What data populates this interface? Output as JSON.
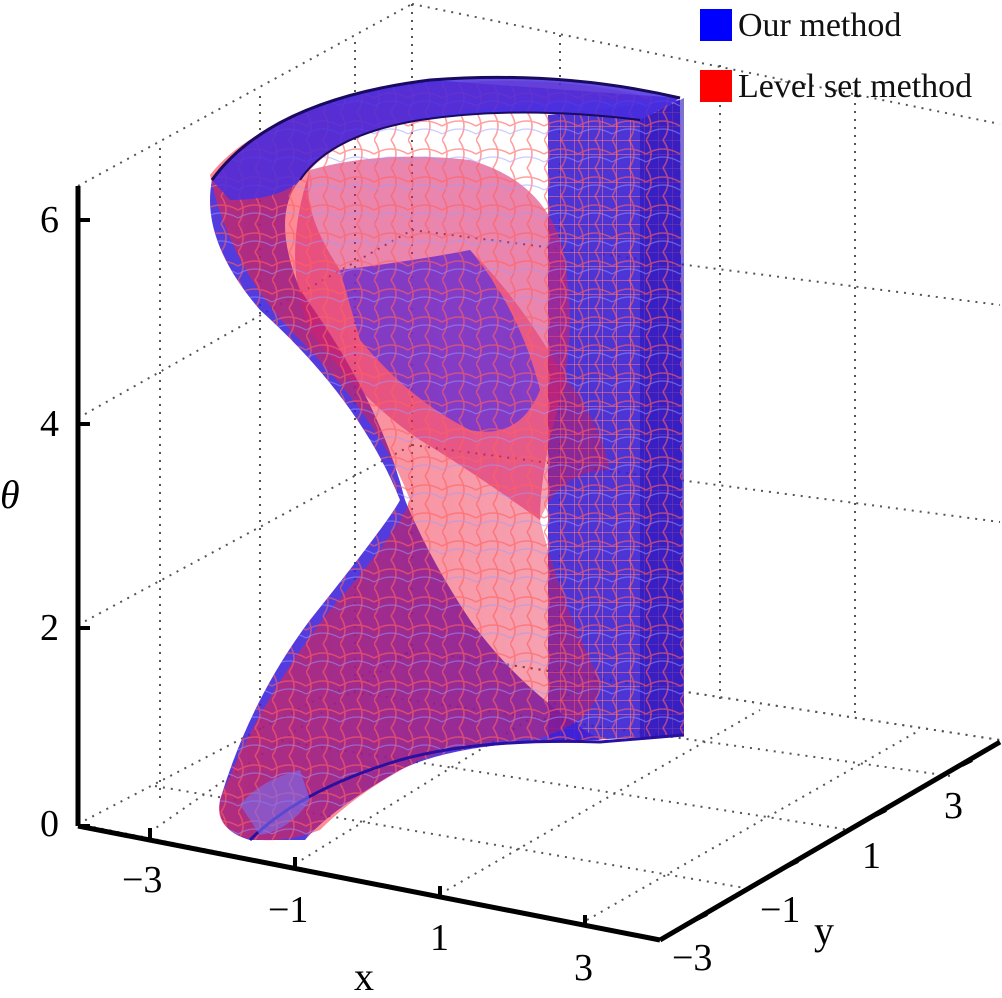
{
  "chart_data": {
    "type": "surface3d",
    "title": "",
    "xlabel": "x",
    "ylabel": "y",
    "zlabel": "θ",
    "xticks": [
      "−3",
      "−1",
      "1",
      "3"
    ],
    "yticks": [
      "−3",
      "−1",
      "1",
      "3"
    ],
    "zticks": [
      "0",
      "2",
      "4",
      "6"
    ],
    "xlim": [
      -4,
      4
    ],
    "ylim": [
      -4,
      4
    ],
    "zlim": [
      0,
      6.28
    ],
    "grid": true,
    "legend_position": "top-right",
    "series": [
      {
        "name": "Our method",
        "color": "#0000ff"
      },
      {
        "name": "Level set method",
        "color": "#ff0000"
      }
    ]
  }
}
